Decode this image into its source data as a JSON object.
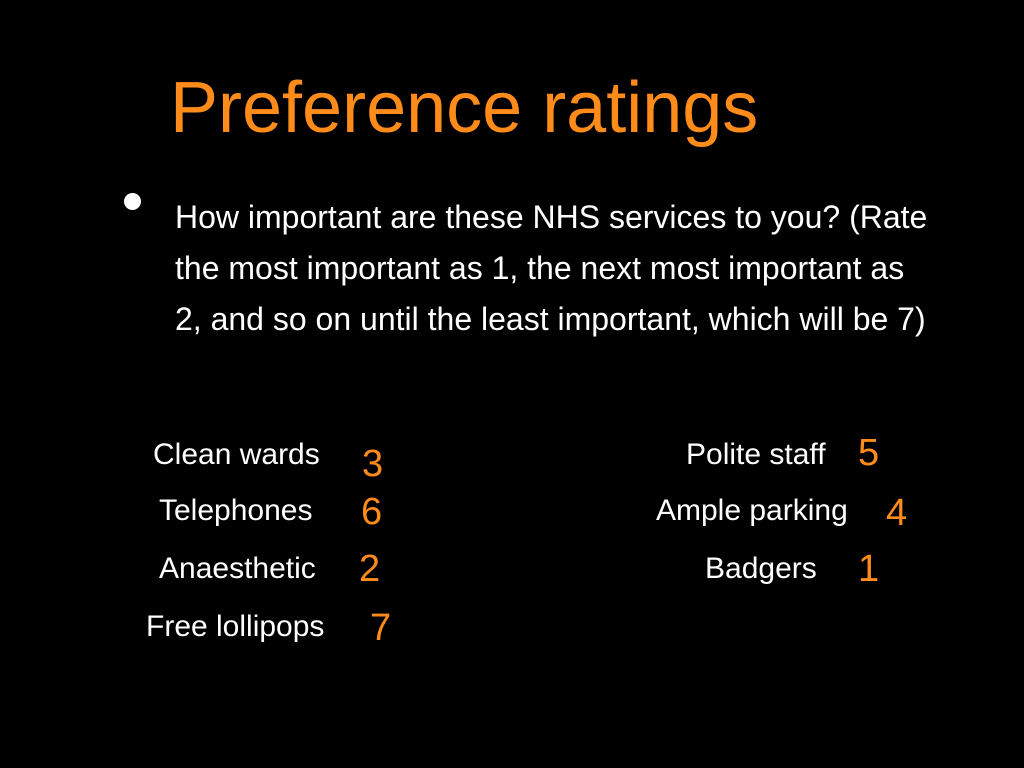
{
  "slide": {
    "title": "Preference ratings",
    "prompt": "How important are these NHS services to you? (Rate the most important as 1, the next most important as 2, and so on until the least important, which will be 7)",
    "accent_color": "#ff8c1a",
    "text_color": "#ffffff",
    "background_color": "#000000"
  },
  "ratings": {
    "left": [
      {
        "label": "Clean wards",
        "rating": "3"
      },
      {
        "label": "Telephones",
        "rating": "6"
      },
      {
        "label": "Anaesthetic",
        "rating": "2"
      },
      {
        "label": "Free lollipops",
        "rating": "7"
      }
    ],
    "right": [
      {
        "label": "Polite staff",
        "rating": "5"
      },
      {
        "label": "Ample parking",
        "rating": "4"
      },
      {
        "label": "Badgers",
        "rating": "1"
      }
    ]
  }
}
